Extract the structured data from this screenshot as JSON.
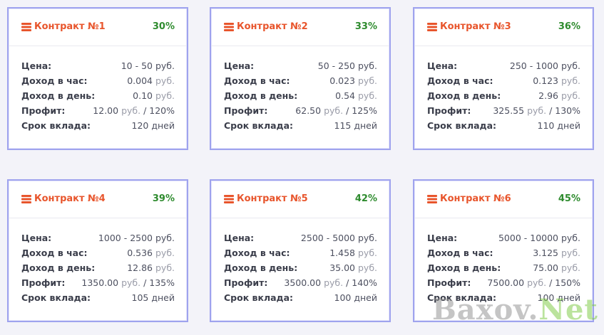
{
  "labels": {
    "price": "Цена:",
    "income_hour": "Доход в час:",
    "income_day": "Доход в день:",
    "profit": "Профит:",
    "term": "Срок вклада:"
  },
  "icon": "server-stack-icon",
  "colors": {
    "title": "#e8552c",
    "percent": "#2e8b2e",
    "border": "#9fa3ee"
  },
  "contracts": [
    {
      "title": "Контракт №1",
      "percent": "30%",
      "price": "10 - 50 руб.",
      "hour_value": "0.004",
      "hour_unit": "руб.",
      "day_value": "0.10",
      "day_unit": "руб.",
      "profit_value": "12.00",
      "profit_unit": "руб.",
      "profit_percent": "/ 120%",
      "term": "120 дней"
    },
    {
      "title": "Контракт №2",
      "percent": "33%",
      "price": "50 - 250 руб.",
      "hour_value": "0.023",
      "hour_unit": "руб.",
      "day_value": "0.54",
      "day_unit": "руб.",
      "profit_value": "62.50",
      "profit_unit": "руб.",
      "profit_percent": "/ 125%",
      "term": "115 дней"
    },
    {
      "title": "Контракт №3",
      "percent": "36%",
      "price": "250 - 1000 руб.",
      "hour_value": "0.123",
      "hour_unit": "руб.",
      "day_value": "2.96",
      "day_unit": "руб.",
      "profit_value": "325.55",
      "profit_unit": "руб.",
      "profit_percent": "/ 130%",
      "term": "110 дней"
    },
    {
      "title": "Контракт №4",
      "percent": "39%",
      "price": "1000 - 2500 руб.",
      "hour_value": "0.536",
      "hour_unit": "руб.",
      "day_value": "12.86",
      "day_unit": "руб.",
      "profit_value": "1350.00",
      "profit_unit": "руб.",
      "profit_percent": "/ 135%",
      "term": "105 дней"
    },
    {
      "title": "Контракт №5",
      "percent": "42%",
      "price": "2500 - 5000 руб.",
      "hour_value": "1.458",
      "hour_unit": "руб.",
      "day_value": "35.00",
      "day_unit": "руб.",
      "profit_value": "3500.00",
      "profit_unit": "руб.",
      "profit_percent": "/ 140%",
      "term": "100 дней"
    },
    {
      "title": "Контракт №6",
      "percent": "45%",
      "price": "5000 - 10000 руб.",
      "hour_value": "3.125",
      "hour_unit": "руб.",
      "day_value": "75.00",
      "day_unit": "руб.",
      "profit_value": "7500.00",
      "profit_unit": "руб.",
      "profit_percent": "/ 150%",
      "term": "100 дней"
    }
  ],
  "watermark": {
    "part1": "Baxov.",
    "part2": "Net"
  }
}
